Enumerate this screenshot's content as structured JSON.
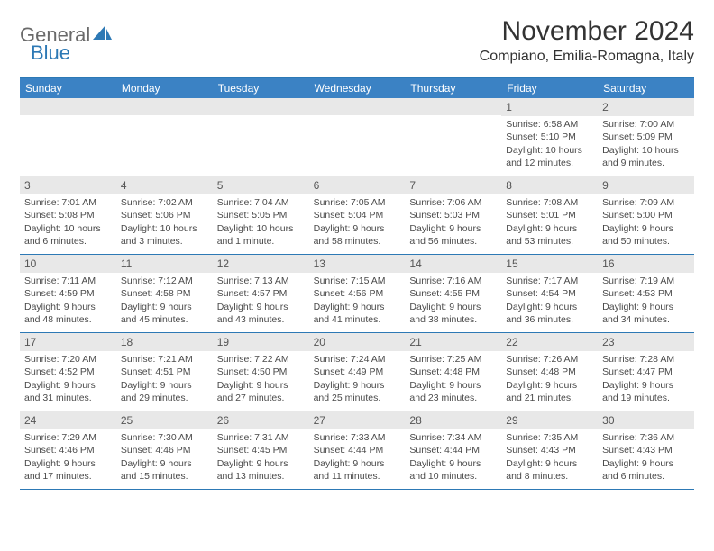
{
  "brand": {
    "part1": "General",
    "part2": "Blue"
  },
  "title": "November 2024",
  "location": "Compiano, Emilia-Romagna, Italy",
  "colors": {
    "header_bg": "#3b82c4",
    "border": "#2d79b5",
    "daynum_bg": "#e8e8e8",
    "text": "#4a4a4a"
  },
  "weekdays": [
    "Sunday",
    "Monday",
    "Tuesday",
    "Wednesday",
    "Thursday",
    "Friday",
    "Saturday"
  ],
  "weeks": [
    [
      {
        "n": "",
        "sr": "",
        "ss": "",
        "dl": ""
      },
      {
        "n": "",
        "sr": "",
        "ss": "",
        "dl": ""
      },
      {
        "n": "",
        "sr": "",
        "ss": "",
        "dl": ""
      },
      {
        "n": "",
        "sr": "",
        "ss": "",
        "dl": ""
      },
      {
        "n": "",
        "sr": "",
        "ss": "",
        "dl": ""
      },
      {
        "n": "1",
        "sr": "Sunrise: 6:58 AM",
        "ss": "Sunset: 5:10 PM",
        "dl": "Daylight: 10 hours and 12 minutes."
      },
      {
        "n": "2",
        "sr": "Sunrise: 7:00 AM",
        "ss": "Sunset: 5:09 PM",
        "dl": "Daylight: 10 hours and 9 minutes."
      }
    ],
    [
      {
        "n": "3",
        "sr": "Sunrise: 7:01 AM",
        "ss": "Sunset: 5:08 PM",
        "dl": "Daylight: 10 hours and 6 minutes."
      },
      {
        "n": "4",
        "sr": "Sunrise: 7:02 AM",
        "ss": "Sunset: 5:06 PM",
        "dl": "Daylight: 10 hours and 3 minutes."
      },
      {
        "n": "5",
        "sr": "Sunrise: 7:04 AM",
        "ss": "Sunset: 5:05 PM",
        "dl": "Daylight: 10 hours and 1 minute."
      },
      {
        "n": "6",
        "sr": "Sunrise: 7:05 AM",
        "ss": "Sunset: 5:04 PM",
        "dl": "Daylight: 9 hours and 58 minutes."
      },
      {
        "n": "7",
        "sr": "Sunrise: 7:06 AM",
        "ss": "Sunset: 5:03 PM",
        "dl": "Daylight: 9 hours and 56 minutes."
      },
      {
        "n": "8",
        "sr": "Sunrise: 7:08 AM",
        "ss": "Sunset: 5:01 PM",
        "dl": "Daylight: 9 hours and 53 minutes."
      },
      {
        "n": "9",
        "sr": "Sunrise: 7:09 AM",
        "ss": "Sunset: 5:00 PM",
        "dl": "Daylight: 9 hours and 50 minutes."
      }
    ],
    [
      {
        "n": "10",
        "sr": "Sunrise: 7:11 AM",
        "ss": "Sunset: 4:59 PM",
        "dl": "Daylight: 9 hours and 48 minutes."
      },
      {
        "n": "11",
        "sr": "Sunrise: 7:12 AM",
        "ss": "Sunset: 4:58 PM",
        "dl": "Daylight: 9 hours and 45 minutes."
      },
      {
        "n": "12",
        "sr": "Sunrise: 7:13 AM",
        "ss": "Sunset: 4:57 PM",
        "dl": "Daylight: 9 hours and 43 minutes."
      },
      {
        "n": "13",
        "sr": "Sunrise: 7:15 AM",
        "ss": "Sunset: 4:56 PM",
        "dl": "Daylight: 9 hours and 41 minutes."
      },
      {
        "n": "14",
        "sr": "Sunrise: 7:16 AM",
        "ss": "Sunset: 4:55 PM",
        "dl": "Daylight: 9 hours and 38 minutes."
      },
      {
        "n": "15",
        "sr": "Sunrise: 7:17 AM",
        "ss": "Sunset: 4:54 PM",
        "dl": "Daylight: 9 hours and 36 minutes."
      },
      {
        "n": "16",
        "sr": "Sunrise: 7:19 AM",
        "ss": "Sunset: 4:53 PM",
        "dl": "Daylight: 9 hours and 34 minutes."
      }
    ],
    [
      {
        "n": "17",
        "sr": "Sunrise: 7:20 AM",
        "ss": "Sunset: 4:52 PM",
        "dl": "Daylight: 9 hours and 31 minutes."
      },
      {
        "n": "18",
        "sr": "Sunrise: 7:21 AM",
        "ss": "Sunset: 4:51 PM",
        "dl": "Daylight: 9 hours and 29 minutes."
      },
      {
        "n": "19",
        "sr": "Sunrise: 7:22 AM",
        "ss": "Sunset: 4:50 PM",
        "dl": "Daylight: 9 hours and 27 minutes."
      },
      {
        "n": "20",
        "sr": "Sunrise: 7:24 AM",
        "ss": "Sunset: 4:49 PM",
        "dl": "Daylight: 9 hours and 25 minutes."
      },
      {
        "n": "21",
        "sr": "Sunrise: 7:25 AM",
        "ss": "Sunset: 4:48 PM",
        "dl": "Daylight: 9 hours and 23 minutes."
      },
      {
        "n": "22",
        "sr": "Sunrise: 7:26 AM",
        "ss": "Sunset: 4:48 PM",
        "dl": "Daylight: 9 hours and 21 minutes."
      },
      {
        "n": "23",
        "sr": "Sunrise: 7:28 AM",
        "ss": "Sunset: 4:47 PM",
        "dl": "Daylight: 9 hours and 19 minutes."
      }
    ],
    [
      {
        "n": "24",
        "sr": "Sunrise: 7:29 AM",
        "ss": "Sunset: 4:46 PM",
        "dl": "Daylight: 9 hours and 17 minutes."
      },
      {
        "n": "25",
        "sr": "Sunrise: 7:30 AM",
        "ss": "Sunset: 4:46 PM",
        "dl": "Daylight: 9 hours and 15 minutes."
      },
      {
        "n": "26",
        "sr": "Sunrise: 7:31 AM",
        "ss": "Sunset: 4:45 PM",
        "dl": "Daylight: 9 hours and 13 minutes."
      },
      {
        "n": "27",
        "sr": "Sunrise: 7:33 AM",
        "ss": "Sunset: 4:44 PM",
        "dl": "Daylight: 9 hours and 11 minutes."
      },
      {
        "n": "28",
        "sr": "Sunrise: 7:34 AM",
        "ss": "Sunset: 4:44 PM",
        "dl": "Daylight: 9 hours and 10 minutes."
      },
      {
        "n": "29",
        "sr": "Sunrise: 7:35 AM",
        "ss": "Sunset: 4:43 PM",
        "dl": "Daylight: 9 hours and 8 minutes."
      },
      {
        "n": "30",
        "sr": "Sunrise: 7:36 AM",
        "ss": "Sunset: 4:43 PM",
        "dl": "Daylight: 9 hours and 6 minutes."
      }
    ]
  ]
}
